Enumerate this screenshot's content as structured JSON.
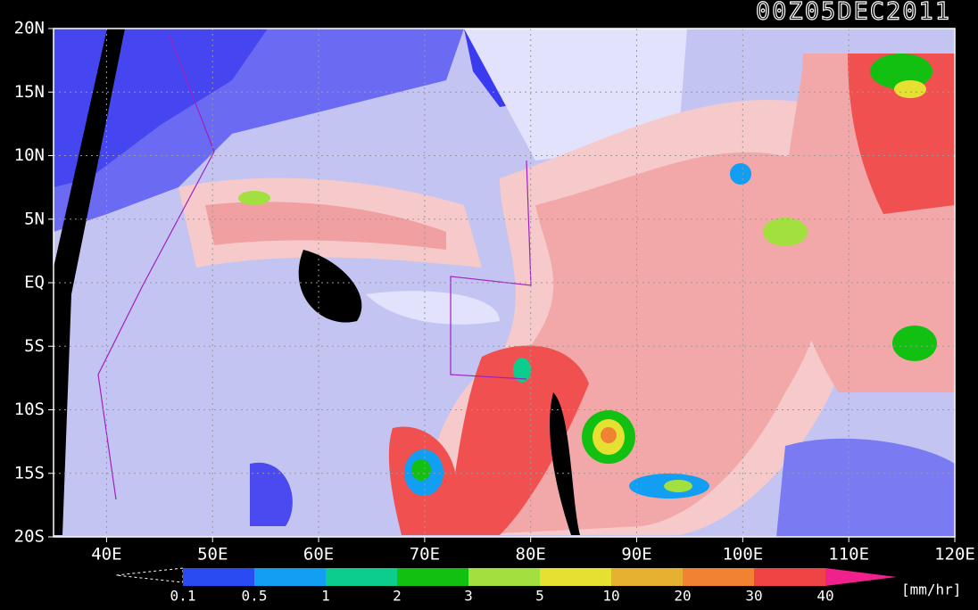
{
  "title": "00Z05DEC2011",
  "lat_labels": [
    "20N",
    "15N",
    "10N",
    "5N",
    "EQ",
    "5S",
    "10S",
    "15S",
    "20S"
  ],
  "lon_labels": [
    "40E",
    "50E",
    "60E",
    "70E",
    "80E",
    "90E",
    "100E",
    "110E",
    "120E"
  ],
  "colorbar": {
    "labels": [
      "0.1",
      "0.5",
      "1",
      "2",
      "3",
      "5",
      "10",
      "20",
      "30",
      "40"
    ],
    "colors": [
      "#2a4af2",
      "#129ef2",
      "#0ccc8e",
      "#12c012",
      "#a2e040",
      "#e6e032",
      "#e6b030",
      "#f08232",
      "#f04444"
    ],
    "over_color": "#f0208c",
    "unit": "[mm/hr]"
  }
}
